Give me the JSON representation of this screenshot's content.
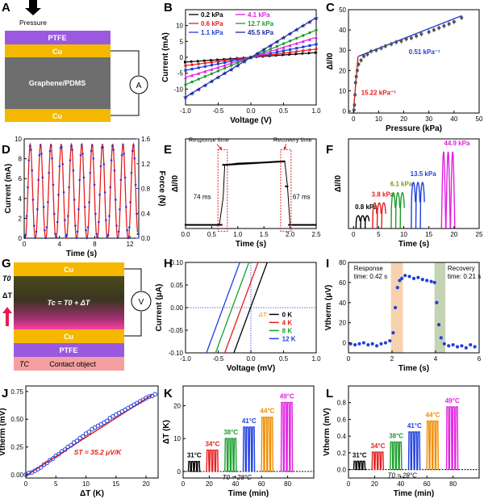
{
  "colors": {
    "ptfe": "#9b59e0",
    "cu": "#f5b800",
    "graphene": "#6e6e6e",
    "black": "#000000",
    "red": "#e81c1c",
    "blue": "#1f3fe0",
    "magenta": "#e020e0",
    "green": "#1a9e2a",
    "navy": "#1a2a9e",
    "darkgreen": "#2e7d1e",
    "purple": "#9b1fd8",
    "orange": "#f08c00",
    "shade_orange": "#f5c79a",
    "shade_green": "#b5c9a0"
  },
  "panels": {
    "A": {
      "letter": "A",
      "pressure_label": "Pressure",
      "layers": [
        "PTFE",
        "Cu",
        "Graphene/PDMS",
        "Cu"
      ],
      "meter": "A"
    },
    "B": {
      "letter": "B",
      "xlabel": "Voltage (V)",
      "ylabel": "Current (mA)"
    },
    "C": {
      "letter": "C",
      "xlabel": "Pressure (kPa)",
      "ylabel": "ΔI/I0",
      "slope_high": "15.22 kPa⁻¹",
      "slope_low": "0.51 kPa⁻¹"
    },
    "D": {
      "letter": "D",
      "xlabel": "Time (s)",
      "ylabel_left": "Current (mA)",
      "ylabel_right": "Force (N)"
    },
    "E": {
      "letter": "E",
      "xlabel": "Time (s)",
      "ylabel": "ΔI/I0",
      "response_label": "Response time",
      "recovery_label": "Recovery  time",
      "response_ms": "74 ms",
      "recovery_ms": "67 ms"
    },
    "F": {
      "letter": "F",
      "xlabel": "Time (s)",
      "ylabel": "ΔI/I0",
      "pressures": [
        "0.8 kPa",
        "3.8 kPa",
        "6.1 kPa",
        "13.5 kPa",
        "44.9 kPa"
      ]
    },
    "G": {
      "letter": "G",
      "t0": "T0",
      "dt": "ΔT",
      "tc_eq": "Tc = T0 + ΔT",
      "meter": "V",
      "layers": [
        "Cu",
        "Cu",
        "PTFE",
        "Contact object"
      ],
      "tc": "TC"
    },
    "H": {
      "letter": "H",
      "xlabel": "Voltage (mV)",
      "ylabel": "Current (μA)",
      "legend_title": "ΔT:",
      "legend": [
        "0 K",
        "4 K",
        "8 K",
        "12 K"
      ]
    },
    "I": {
      "letter": "I",
      "xlabel": "Time (s)",
      "ylabel": "Vtherm (μV)",
      "response": "Response",
      "response_time": "time: 0.42 s",
      "recovery": "Recovery",
      "recovery_time": "time: 0.21 s"
    },
    "J": {
      "letter": "J",
      "xlabel": "ΔT (K)",
      "ylabel": "Vtherm (mV)",
      "st": "ST = 35.2 μV/K"
    },
    "K": {
      "letter": "K",
      "xlabel": "Time (min)",
      "ylabel": "ΔT (K)",
      "t0": "T0 = 28°C",
      "temps": [
        "31°C",
        "34°C",
        "38°C",
        "41°C",
        "44°C",
        "49°C"
      ]
    },
    "L": {
      "letter": "L",
      "xlabel": "Time (min)",
      "ylabel": "Vtherm (mV)",
      "t0": "T0 = 28°C",
      "temps": [
        "31°C",
        "34°C",
        "38°C",
        "41°C",
        "44°C",
        "49°C"
      ]
    }
  },
  "chart_data": [
    {
      "panel": "B",
      "type": "line",
      "xlim": [
        -1,
        1
      ],
      "ylim": [
        -15,
        15
      ],
      "xticks": [
        -1.0,
        -0.5,
        0.0,
        0.5,
        1.0
      ],
      "yticks": [
        -10,
        -5,
        0,
        5,
        10
      ],
      "series": [
        {
          "name": "0.2 kPa",
          "color": "#000000",
          "slope": 1.5
        },
        {
          "name": "0.6 kPa",
          "color": "#e81c1c",
          "slope": 2.6
        },
        {
          "name": "1.1 kPa",
          "color": "#1f3fe0",
          "slope": 4.1
        },
        {
          "name": "4.1 kPa",
          "color": "#e020e0",
          "slope": 6.3
        },
        {
          "name": "12.7 kPa",
          "color": "#1a9e2a",
          "slope": 8.6
        },
        {
          "name": "45.5 kPa",
          "color": "#1a2a9e",
          "slope": 12.5
        }
      ]
    },
    {
      "panel": "C",
      "type": "scatter",
      "xlim": [
        -2,
        50
      ],
      "ylim": [
        -1,
        50
      ],
      "xticks": [
        0,
        10,
        20,
        30,
        40,
        50
      ],
      "yticks": [
        0,
        10,
        20,
        30,
        40,
        50
      ],
      "x": [
        0.2,
        0.4,
        0.6,
        0.8,
        1.1,
        1.5,
        2.0,
        3.0,
        4.1,
        5.5,
        7,
        9,
        11,
        12.7,
        15,
        17,
        19,
        21,
        23,
        25,
        27,
        30,
        32,
        34,
        36,
        38,
        40,
        43
      ],
      "y": [
        0.5,
        3,
        8,
        14,
        17,
        20,
        23,
        25,
        27,
        28,
        29.5,
        30,
        31,
        32,
        33,
        34,
        34.5,
        35.5,
        36,
        37,
        38,
        39,
        40,
        41,
        42,
        43,
        44,
        46
      ]
    },
    {
      "panel": "D",
      "type": "line",
      "xlim": [
        0,
        13
      ],
      "ylim_left": [
        0,
        10
      ],
      "ylim_right": [
        0,
        1.6
      ],
      "xticks": [
        0,
        4,
        8,
        12
      ],
      "yticks_left": [
        0,
        2,
        4,
        6,
        8,
        10
      ],
      "yticks_right": [
        0.0,
        0.4,
        0.8,
        1.2,
        1.6
      ],
      "period_s": 1.17,
      "peak_current_ma": 9.5,
      "peak_force_n": 1.5
    },
    {
      "panel": "E",
      "type": "line",
      "xlim": [
        0,
        2.5
      ],
      "ylim": [
        0,
        10
      ],
      "xticks": [
        0.0,
        0.5,
        1.0,
        1.5,
        2.0,
        2.5
      ],
      "x": [
        0,
        0.6,
        0.65,
        0.72,
        0.75,
        1.0,
        1.5,
        1.85,
        1.9,
        1.95,
        2.0,
        2.5
      ],
      "y": [
        0.4,
        0.4,
        0.5,
        3.5,
        7.1,
        7.3,
        7.4,
        7.5,
        7.4,
        4.7,
        0.4,
        0.4
      ]
    },
    {
      "panel": "F",
      "type": "line",
      "xlim": [
        -1,
        25
      ],
      "ylim": [
        0,
        35
      ],
      "xticks": [
        0,
        5,
        10,
        15,
        20,
        25
      ],
      "series": [
        {
          "name": "0.8 kPa",
          "color": "#000000",
          "peak": 5,
          "start": 0.5
        },
        {
          "name": "3.8 kPa",
          "color": "#e81c1c",
          "peak": 10,
          "start": 3.8
        },
        {
          "name": "6.1 kPa",
          "color": "#1a9e2a",
          "peak": 14,
          "start": 7.5
        },
        {
          "name": "13.5 kPa",
          "color": "#1f3fe0",
          "peak": 18,
          "start": 11.5
        },
        {
          "name": "44.9 kPa",
          "color": "#e020e0",
          "peak": 30,
          "start": 17.5
        }
      ]
    },
    {
      "panel": "H",
      "type": "line",
      "xlim": [
        -1.0,
        1.0
      ],
      "ylim": [
        -0.1,
        0.1
      ],
      "xticks": [
        -1.0,
        -0.5,
        0.0,
        0.5,
        1.0
      ],
      "yticks": [
        -0.1,
        -0.05,
        0.0,
        0.05,
        0.1
      ],
      "series": [
        {
          "name": "0 K",
          "color": "#000000",
          "x_intercept": 0.0
        },
        {
          "name": "4 K",
          "color": "#e81c1c",
          "x_intercept": -0.14
        },
        {
          "name": "8 K",
          "color": "#1a9e2a",
          "x_intercept": -0.28
        },
        {
          "name": "12 K",
          "color": "#1f3fe0",
          "x_intercept": -0.42
        }
      ]
    },
    {
      "panel": "I",
      "type": "scatter",
      "xlim": [
        0,
        6
      ],
      "ylim": [
        -10,
        80
      ],
      "xticks": [
        0,
        2,
        4,
        6
      ],
      "yticks": [
        0,
        20,
        40,
        60,
        80
      ],
      "x": [
        0.1,
        0.3,
        0.5,
        0.7,
        0.9,
        1.1,
        1.3,
        1.5,
        1.7,
        1.9,
        2.05,
        2.15,
        2.25,
        2.35,
        2.45,
        2.6,
        2.8,
        3.0,
        3.2,
        3.4,
        3.6,
        3.8,
        3.95,
        4.05,
        4.15,
        4.25,
        4.4,
        4.6,
        4.8,
        5.0,
        5.2,
        5.4,
        5.6,
        5.8
      ],
      "y": [
        -1,
        -2,
        -1,
        0,
        -2,
        -1,
        -3,
        -1,
        0,
        2,
        10,
        35,
        55,
        62,
        64,
        67,
        66,
        64,
        65,
        63,
        62,
        61,
        60,
        40,
        18,
        5,
        -1,
        -3,
        -2,
        -4,
        -3,
        -5,
        -2,
        -4
      ]
    },
    {
      "panel": "J",
      "type": "scatter",
      "xlim": [
        0,
        22
      ],
      "ylim": [
        -0.03,
        0.8
      ],
      "xticks": [
        0,
        5,
        10,
        15,
        20
      ],
      "yticks": [
        0.0,
        0.25,
        0.5,
        0.75
      ],
      "x": [
        0,
        1,
        2,
        3,
        4,
        5,
        6,
        7,
        8,
        9,
        10,
        11,
        12,
        13,
        14,
        15,
        16,
        17,
        18,
        19,
        20,
        21
      ],
      "y": [
        0.0,
        0.02,
        0.05,
        0.09,
        0.13,
        0.17,
        0.21,
        0.25,
        0.29,
        0.33,
        0.37,
        0.41,
        0.44,
        0.47,
        0.51,
        0.54,
        0.57,
        0.6,
        0.63,
        0.66,
        0.69,
        0.71
      ]
    },
    {
      "panel": "K",
      "type": "line",
      "xlim": [
        0,
        100
      ],
      "ylim": [
        -2,
        26
      ],
      "xticks": [
        0,
        20,
        40,
        60,
        80
      ],
      "yticks": [
        0,
        10,
        20
      ],
      "series": [
        {
          "name": "31°C",
          "color": "#000000",
          "peak": 3,
          "start": 4
        },
        {
          "name": "34°C",
          "color": "#e81c1c",
          "peak": 6.5,
          "start": 18
        },
        {
          "name": "38°C",
          "color": "#1a9e2a",
          "peak": 10,
          "start": 32
        },
        {
          "name": "41°C",
          "color": "#1f3fe0",
          "peak": 13.5,
          "start": 46
        },
        {
          "name": "44°C",
          "color": "#f08c00",
          "peak": 16.5,
          "start": 60
        },
        {
          "name": "49°C",
          "color": "#e020e0",
          "peak": 21,
          "start": 75
        }
      ]
    },
    {
      "panel": "L",
      "type": "line",
      "xlim": [
        0,
        100
      ],
      "ylim": [
        -0.1,
        1.0
      ],
      "xticks": [
        0,
        20,
        40,
        60,
        80
      ],
      "yticks": [
        0.0,
        0.2,
        0.4,
        0.6,
        0.8
      ],
      "series": [
        {
          "name": "31°C",
          "color": "#000000",
          "peak": 0.1,
          "start": 4
        },
        {
          "name": "34°C",
          "color": "#e81c1c",
          "peak": 0.21,
          "start": 18
        },
        {
          "name": "38°C",
          "color": "#1a9e2a",
          "peak": 0.33,
          "start": 32
        },
        {
          "name": "41°C",
          "color": "#1f3fe0",
          "peak": 0.45,
          "start": 46
        },
        {
          "name": "44°C",
          "color": "#f08c00",
          "peak": 0.58,
          "start": 60
        },
        {
          "name": "49°C",
          "color": "#e020e0",
          "peak": 0.75,
          "start": 75
        }
      ]
    }
  ]
}
